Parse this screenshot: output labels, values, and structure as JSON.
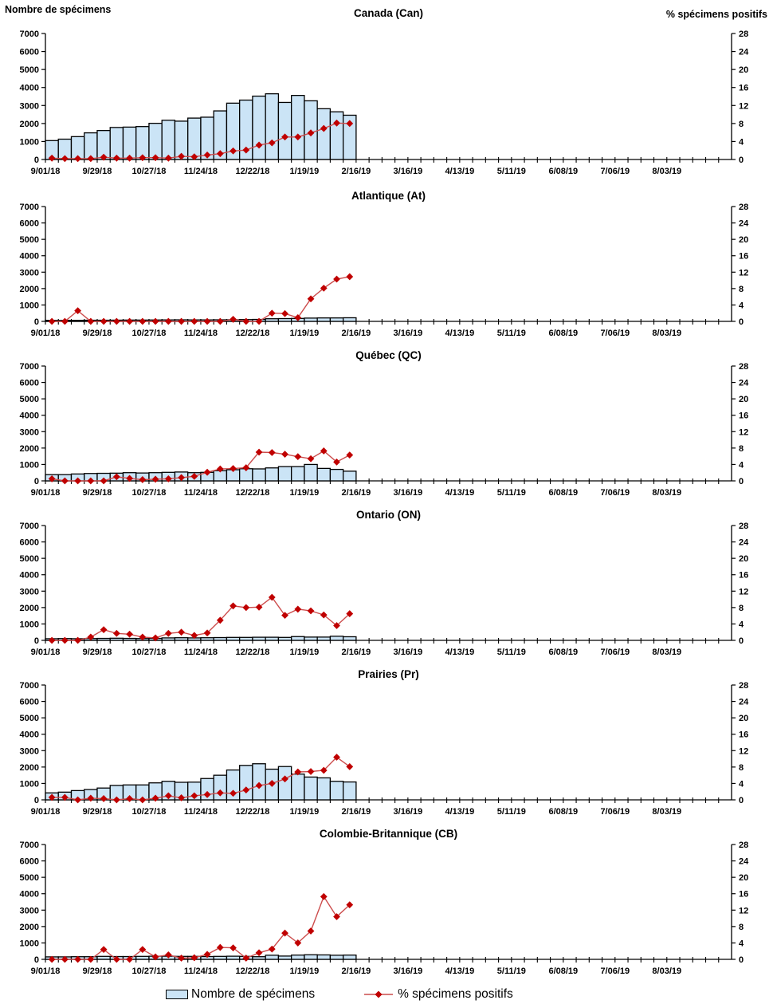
{
  "axis_headers": {
    "left": "Nombre de spécimens",
    "right": "% spécimens positifs"
  },
  "legend": {
    "bars_label": "Nombre de spécimens",
    "line_label": "% spécimens positifs"
  },
  "colors": {
    "bar_fill": "#CBE4F6",
    "bar_stroke": "#000000",
    "line": "#CC4C4C",
    "marker": "#C00000",
    "axis": "#000000"
  },
  "axes": {
    "left_axis": {
      "label": "Nombre de spécimens",
      "min": 0,
      "max": 7000,
      "step": 1000,
      "tick_labels": [
        "7000",
        "6000",
        "5000",
        "4000",
        "3000",
        "2000",
        "1000",
        "0"
      ]
    },
    "right_axis": {
      "label": "% spécimens positifs",
      "min": 0,
      "max": 28,
      "step": 4,
      "tick_labels": [
        "28",
        "24",
        "20",
        "16",
        "12",
        "8",
        "4",
        "0"
      ]
    },
    "x_tick_labels": [
      "9/01/18",
      "9/29/18",
      "10/27/18",
      "11/24/18",
      "12/22/18",
      "1/19/19",
      "2/16/19",
      "3/16/19",
      "4/13/19",
      "5/11/19",
      "6/08/19",
      "7/06/19",
      "8/03/19"
    ],
    "weeks_total": 53,
    "label_every_n_ticks": 4,
    "week_labels": [
      "9/01/18",
      "9/08/18",
      "9/15/18",
      "9/22/18",
      "9/29/18",
      "10/06/18",
      "10/13/18",
      "10/20/18",
      "10/27/18",
      "11/03/18",
      "11/10/18",
      "11/17/18",
      "11/24/18",
      "12/01/18",
      "12/08/18",
      "12/15/18",
      "12/22/18",
      "12/29/18",
      "1/05/19",
      "1/12/19",
      "1/19/19",
      "1/26/19",
      "2/02/19",
      "2/09/19"
    ],
    "grid": false,
    "legend_position": "bottom"
  },
  "chart_data": [
    {
      "id": "canada",
      "type": "bar+line",
      "title": "Canada (Can)",
      "series": [
        {
          "name": "Nombre de spécimens",
          "type": "bar",
          "axis": "left",
          "values": [
            1050,
            1130,
            1270,
            1480,
            1610,
            1780,
            1800,
            1830,
            2010,
            2180,
            2130,
            2300,
            2350,
            2700,
            3130,
            3300,
            3520,
            3650,
            3170,
            3560,
            3260,
            2820,
            2650,
            2460
          ]
        },
        {
          "name": "% spécimens positifs",
          "type": "line",
          "axis": "right",
          "values": [
            0.3,
            0.2,
            0.2,
            0.2,
            0.5,
            0.3,
            0.3,
            0.4,
            0.4,
            0.3,
            0.7,
            0.6,
            1.0,
            1.3,
            1.9,
            2.1,
            3.2,
            3.7,
            5.0,
            5.0,
            5.9,
            6.9,
            8.1,
            8.0
          ]
        }
      ]
    },
    {
      "id": "atlantique",
      "type": "bar+line",
      "title": "Atlantique (At)",
      "series": [
        {
          "name": "Nombre de spécimens",
          "type": "bar",
          "axis": "left",
          "values": [
            60,
            60,
            65,
            70,
            70,
            75,
            80,
            80,
            85,
            90,
            95,
            90,
            90,
            95,
            100,
            110,
            120,
            160,
            170,
            180,
            200,
            210,
            210,
            220
          ]
        },
        {
          "name": "% spécimens positifs",
          "type": "line",
          "axis": "right",
          "values": [
            0,
            0,
            2.6,
            0,
            0,
            0,
            0,
            0,
            0,
            0,
            0,
            0,
            0,
            0,
            0.5,
            0,
            0,
            2.0,
            1.9,
            0.9,
            5.5,
            8.1,
            10.3,
            10.9
          ]
        }
      ]
    },
    {
      "id": "quebec",
      "type": "bar+line",
      "title": "Québec (QC)",
      "series": [
        {
          "name": "Nombre de spécimens",
          "type": "bar",
          "axis": "left",
          "values": [
            380,
            380,
            420,
            450,
            460,
            470,
            500,
            480,
            500,
            520,
            540,
            500,
            520,
            620,
            680,
            740,
            730,
            790,
            870,
            870,
            1000,
            760,
            700,
            590
          ]
        },
        {
          "name": "% spécimens positifs",
          "type": "line",
          "axis": "right",
          "values": [
            0.5,
            0,
            0,
            0,
            0,
            1.0,
            0.6,
            0.3,
            0.4,
            0.5,
            0.8,
            1.1,
            2.1,
            2.9,
            3.0,
            3.2,
            7.0,
            6.9,
            6.5,
            5.9,
            5.4,
            7.3,
            4.6,
            6.3
          ]
        }
      ]
    },
    {
      "id": "ontario",
      "type": "bar+line",
      "title": "Ontario (ON)",
      "series": [
        {
          "name": "Nombre de spécimens",
          "type": "bar",
          "axis": "left",
          "values": [
            100,
            110,
            100,
            110,
            120,
            130,
            120,
            110,
            120,
            150,
            160,
            150,
            160,
            170,
            180,
            180,
            190,
            190,
            180,
            230,
            200,
            200,
            250,
            220
          ]
        },
        {
          "name": "% spécimens positifs",
          "type": "line",
          "axis": "right",
          "values": [
            0,
            0,
            0,
            0.8,
            2.6,
            1.7,
            1.5,
            0.8,
            0.6,
            1.7,
            2.0,
            1.2,
            1.8,
            4.9,
            8.4,
            8.0,
            8.1,
            10.5,
            6.1,
            7.6,
            7.2,
            6.2,
            3.6,
            6.5
          ]
        }
      ]
    },
    {
      "id": "prairies",
      "type": "bar+line",
      "title": "Prairies (Pr)",
      "series": [
        {
          "name": "Nombre de spécimens",
          "type": "bar",
          "axis": "left",
          "values": [
            425,
            470,
            565,
            630,
            720,
            880,
            910,
            910,
            1035,
            1130,
            1070,
            1080,
            1300,
            1500,
            1820,
            2100,
            2200,
            1870,
            2030,
            1570,
            1390,
            1340,
            1130,
            1090
          ]
        },
        {
          "name": "% spécimens positifs",
          "type": "line",
          "axis": "right",
          "values": [
            0.6,
            0.6,
            0,
            0.4,
            0.3,
            0,
            0.3,
            0,
            0.4,
            1.0,
            0.5,
            1.0,
            1.3,
            1.7,
            1.6,
            2.4,
            3.5,
            4.0,
            5.1,
            6.8,
            6.9,
            7.2,
            10.4,
            8.1
          ]
        }
      ]
    },
    {
      "id": "colombie-britannique",
      "type": "bar+line",
      "title": "Colombie-Britannique (CB)",
      "series": [
        {
          "name": "Nombre de spécimens",
          "type": "bar",
          "axis": "left",
          "values": [
            150,
            150,
            160,
            160,
            180,
            170,
            170,
            180,
            190,
            190,
            180,
            180,
            170,
            180,
            190,
            180,
            160,
            250,
            200,
            260,
            280,
            270,
            250,
            260
          ]
        },
        {
          "name": "% spécimens positifs",
          "type": "line",
          "axis": "right",
          "values": [
            0,
            0,
            0,
            0,
            2.4,
            0,
            0,
            2.4,
            0.6,
            1.1,
            0.3,
            0.4,
            1.2,
            2.9,
            2.8,
            0.3,
            1.6,
            2.5,
            6.4,
            4.0,
            6.9,
            15.3,
            10.4,
            13.3
          ]
        }
      ]
    }
  ]
}
